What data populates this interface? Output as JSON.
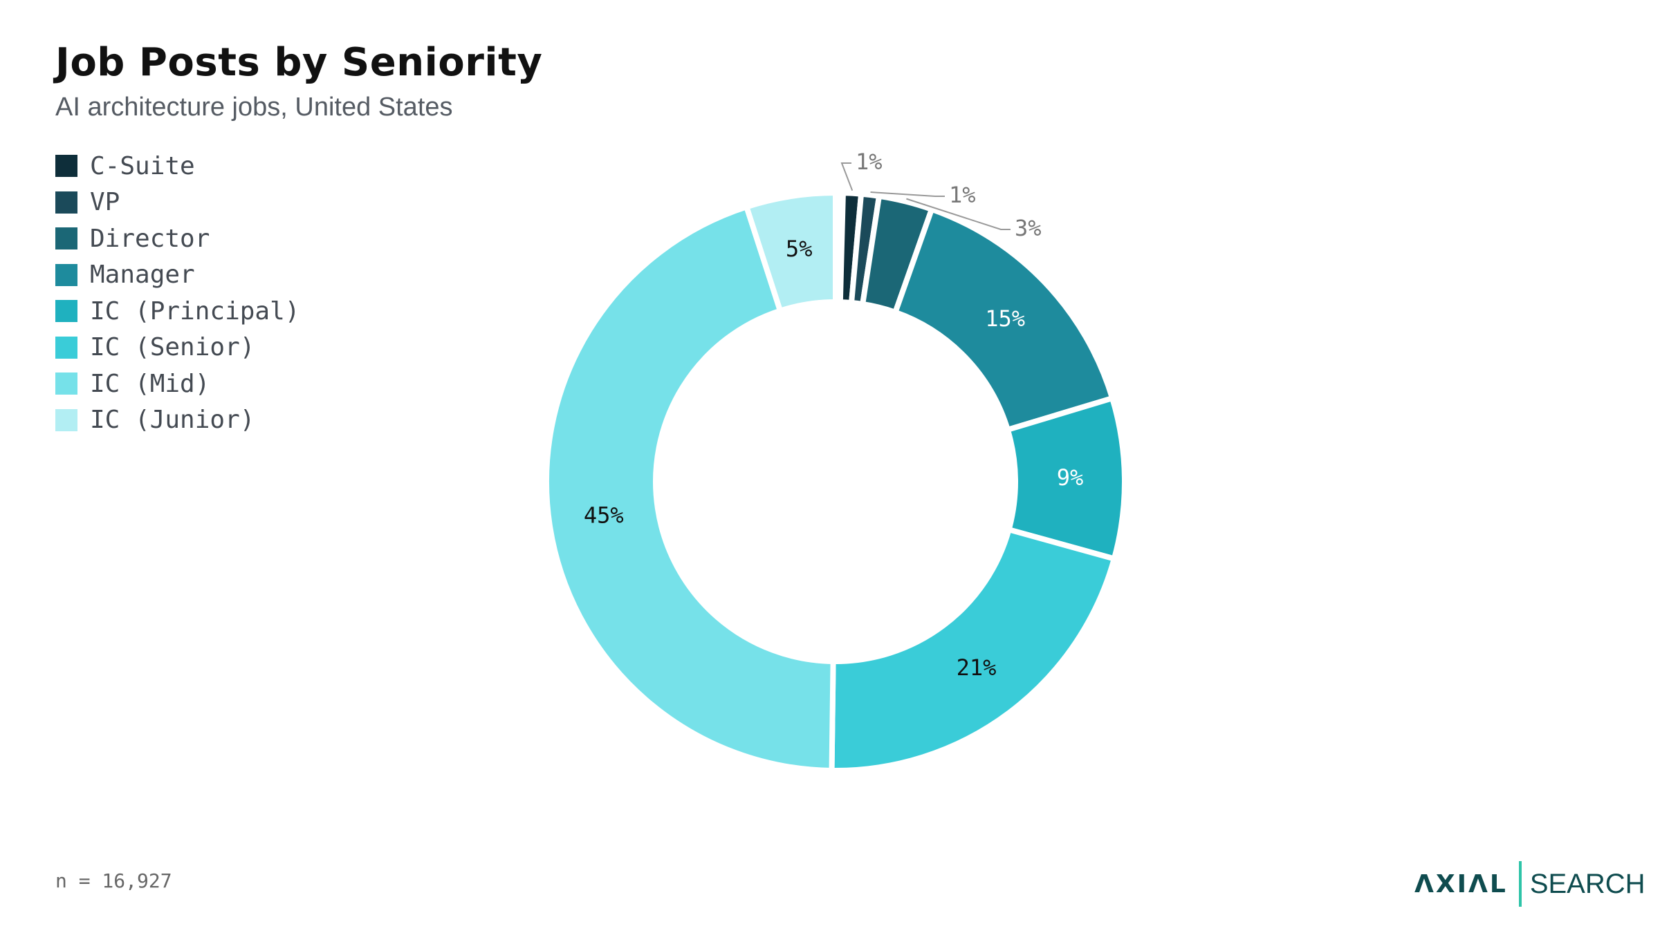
{
  "header": {
    "title": "Job Posts by Seniority",
    "subtitle": "AI architecture jobs, United States"
  },
  "footnote": "n = 16,927",
  "logo": {
    "brand": "ΛXIΛL",
    "sub": "SEARCH",
    "divider_color": "#2ec4a8"
  },
  "chart_data": {
    "type": "pie",
    "donut": true,
    "legend_position": "top-left",
    "categories": [
      "C-Suite",
      "VP",
      "Director",
      "Manager",
      "IC (Principal)",
      "IC (Senior)",
      "IC (Mid)",
      "IC (Junior)"
    ],
    "values": [
      1,
      1,
      3,
      15,
      9,
      21,
      45,
      5
    ],
    "labels": [
      "1%",
      "1%",
      "3%",
      "15%",
      "9%",
      "21%",
      "45%",
      "5%"
    ],
    "colors": [
      "#0e2e3a",
      "#1b4a5a",
      "#1b6776",
      "#1e8b9d",
      "#1fb1bf",
      "#3accd8",
      "#76e1e9",
      "#b2eef3"
    ],
    "label_colors": [
      "#777777",
      "#777777",
      "#777777",
      "#ffffff",
      "#ffffff",
      "#111111",
      "#111111",
      "#111111"
    ],
    "label_outside": [
      true,
      true,
      true,
      false,
      false,
      false,
      false,
      false
    ]
  }
}
